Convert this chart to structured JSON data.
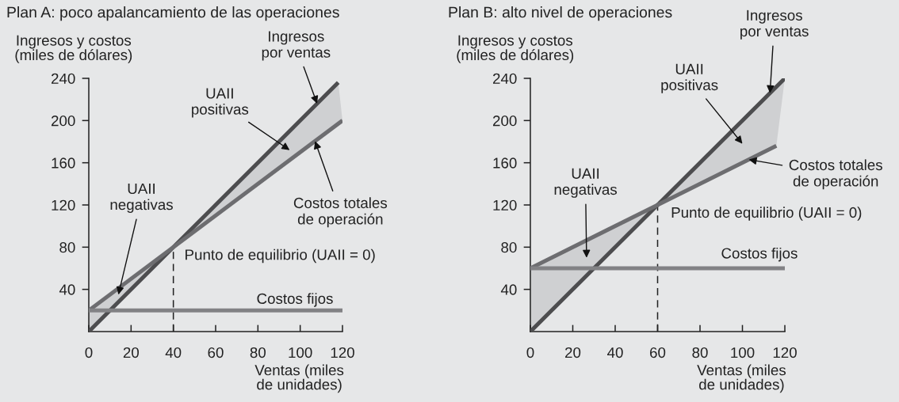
{
  "chart_data": [
    {
      "type": "line",
      "title": "Plan A: poco apalancamiento de las operaciones",
      "xlabel": "Ventas (miles\nde unidades)",
      "ylabel": "Ingresos y costos\n(miles de dólares)",
      "xlim": [
        0,
        120
      ],
      "ylim": [
        0,
        240
      ],
      "xticks": [
        0,
        20,
        40,
        60,
        80,
        100,
        120
      ],
      "yticks": [
        40,
        80,
        120,
        160,
        200,
        240
      ],
      "grid": false,
      "legend": false,
      "series": [
        {
          "name": "Ingresos\npor ventas",
          "color": "#4d4d4f",
          "x": [
            0,
            118
          ],
          "values": [
            0,
            236
          ]
        },
        {
          "name": "Costos totales\nde operación",
          "color": "#6d6d70",
          "x": [
            0,
            120
          ],
          "values": [
            20,
            200
          ]
        },
        {
          "name": "Costos fijos",
          "color": "#828285",
          "x": [
            0,
            120
          ],
          "values": [
            20,
            20
          ]
        }
      ],
      "ref_lines": [
        {
          "axis": "x",
          "value": 40,
          "line_style": "dashed",
          "color": "#222222"
        }
      ],
      "annotations": [
        "UAII\npositivas",
        {
          "text": "UAII\nnegativas",
          "x": 14,
          "y": 35
        },
        {
          "text": "Punto de equilibrio (UAII = 0)",
          "x": 40,
          "y": 80
        }
      ]
    },
    {
      "type": "line",
      "title": "Plan B: alto nivel de operaciones",
      "xlabel": "Ventas (miles\nde unidades)",
      "ylabel": "Ingresos y costos\n(miles de dólares)",
      "xlim": [
        0,
        120
      ],
      "ylim": [
        0,
        240
      ],
      "xticks": [
        0,
        20,
        40,
        60,
        80,
        100,
        120
      ],
      "yticks": [
        40,
        80,
        120,
        160,
        200,
        240
      ],
      "grid": false,
      "legend": false,
      "series": [
        {
          "name": "Ingresos\npor ventas",
          "color": "#4d4d4f",
          "x": [
            0,
            120
          ],
          "values": [
            0,
            240
          ]
        },
        {
          "name": "Costos totales\nde operación",
          "color": "#6d6d70",
          "x": [
            0,
            116
          ],
          "values": [
            60,
            176
          ]
        },
        {
          "name": "Costos fijos",
          "color": "#828285",
          "x": [
            0,
            120
          ],
          "values": [
            60,
            60
          ]
        }
      ],
      "ref_lines": [
        {
          "axis": "x",
          "value": 60,
          "line_style": "dashed",
          "color": "#222222"
        }
      ],
      "annotations": [
        "UAII\npositivas",
        "UAII\nnegativas",
        {
          "text": "Punto de equilibrio (UAII = 0)",
          "x": 60,
          "y": 120
        }
      ]
    }
  ]
}
